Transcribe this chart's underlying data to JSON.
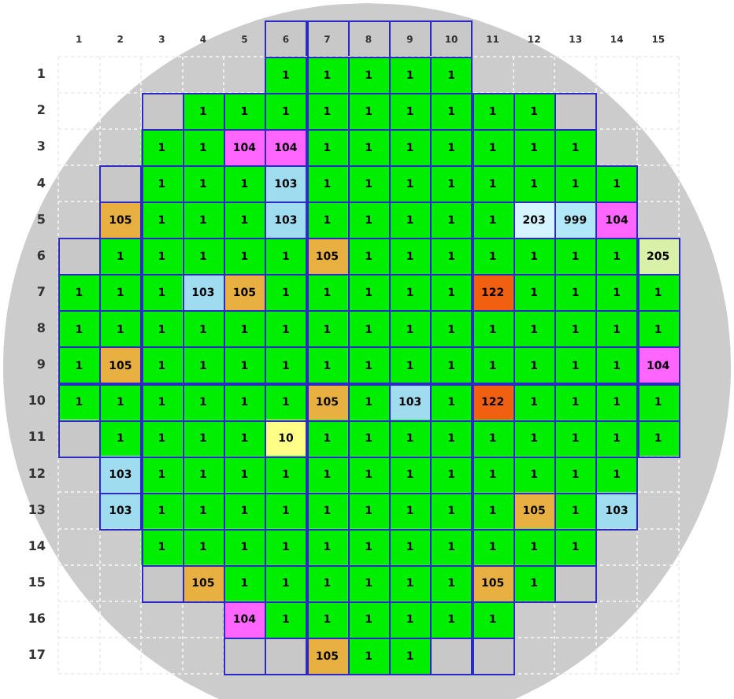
{
  "chart_data": {
    "type": "heatmap",
    "categories": [
      "1",
      "2",
      "3",
      "4",
      "5",
      "6",
      "7",
      "8",
      "9",
      "10",
      "11",
      "12",
      "13",
      "14",
      "15"
    ],
    "y_categories": [
      "1",
      "2",
      "3",
      "4",
      "5",
      "6",
      "7",
      "8",
      "9",
      "10",
      "11",
      "12",
      "13",
      "14",
      "15",
      "16",
      "17"
    ],
    "cells": [
      [
        null,
        null,
        null,
        null,
        null,
        1,
        1,
        1,
        1,
        1,
        null,
        null,
        null,
        null,
        null
      ],
      [
        null,
        null,
        null,
        1,
        1,
        1,
        1,
        1,
        1,
        1,
        1,
        1,
        null,
        null,
        null
      ],
      [
        null,
        null,
        1,
        1,
        104,
        104,
        1,
        1,
        1,
        1,
        1,
        1,
        1,
        null,
        null
      ],
      [
        null,
        null,
        1,
        1,
        1,
        103,
        1,
        1,
        1,
        1,
        1,
        1,
        1,
        1,
        null
      ],
      [
        null,
        105,
        1,
        1,
        1,
        103,
        1,
        1,
        1,
        1,
        1,
        203,
        999,
        104,
        null
      ],
      [
        null,
        1,
        1,
        1,
        1,
        1,
        105,
        1,
        1,
        1,
        1,
        1,
        1,
        1,
        205
      ],
      [
        1,
        1,
        1,
        103,
        105,
        1,
        1,
        1,
        1,
        1,
        122,
        1,
        1,
        1,
        1
      ],
      [
        1,
        1,
        1,
        1,
        1,
        1,
        1,
        1,
        1,
        1,
        1,
        1,
        1,
        1,
        1
      ],
      [
        1,
        105,
        1,
        1,
        1,
        1,
        1,
        1,
        1,
        1,
        1,
        1,
        1,
        1,
        104
      ],
      [
        1,
        1,
        1,
        1,
        1,
        1,
        105,
        1,
        103,
        1,
        122,
        1,
        1,
        1,
        1
      ],
      [
        null,
        1,
        1,
        1,
        1,
        10,
        1,
        1,
        1,
        1,
        1,
        1,
        1,
        1,
        1
      ],
      [
        null,
        103,
        1,
        1,
        1,
        1,
        1,
        1,
        1,
        1,
        1,
        1,
        1,
        1,
        null
      ],
      [
        null,
        103,
        1,
        1,
        1,
        1,
        1,
        1,
        1,
        1,
        1,
        105,
        1,
        103,
        null
      ],
      [
        null,
        null,
        1,
        1,
        1,
        1,
        1,
        1,
        1,
        1,
        1,
        1,
        1,
        null,
        null
      ],
      [
        null,
        null,
        null,
        105,
        1,
        1,
        1,
        1,
        1,
        1,
        105,
        1,
        null,
        null,
        null
      ],
      [
        null,
        null,
        null,
        null,
        104,
        1,
        1,
        1,
        1,
        1,
        1,
        null,
        null,
        null,
        null
      ],
      [
        null,
        null,
        null,
        null,
        null,
        null,
        105,
        1,
        1,
        null,
        null,
        null,
        null,
        null,
        null
      ]
    ],
    "colors": [
      [
        null,
        null,
        null,
        null,
        null,
        "#00ee00",
        "#00ee00",
        "#00ee00",
        "#00ee00",
        "#00ee00",
        null,
        null,
        null,
        null,
        null
      ],
      [
        null,
        null,
        null,
        "#00ee00",
        "#00ee00",
        "#00ee00",
        "#00ee00",
        "#00ee00",
        "#00ee00",
        "#00ee00",
        "#00ee00",
        "#00ee00",
        null,
        null,
        null
      ],
      [
        null,
        null,
        "#00ee00",
        "#00ee00",
        "#ff66ff",
        "#ff66ff",
        "#00ee00",
        "#00ee00",
        "#00ee00",
        "#00ee00",
        "#00ee00",
        "#00ee00",
        "#00ee00",
        null,
        null
      ],
      [
        null,
        null,
        "#00ee00",
        "#00ee00",
        "#00ee00",
        "#a0dcf0",
        "#00ee00",
        "#00ee00",
        "#00ee00",
        "#00ee00",
        "#00ee00",
        "#00ee00",
        "#00ee00",
        "#00ee00",
        null
      ],
      [
        null,
        "#e8b040",
        "#00ee00",
        "#00ee00",
        "#00ee00",
        "#a0dcf0",
        "#00ee00",
        "#00ee00",
        "#00ee00",
        "#00ee00",
        "#00ee00",
        "#d4f4ff",
        "#b0e8f8",
        "#ff66ff",
        null
      ],
      [
        null,
        "#00ee00",
        "#00ee00",
        "#00ee00",
        "#00ee00",
        "#00ee00",
        "#e8b040",
        "#00ee00",
        "#00ee00",
        "#00ee00",
        "#00ee00",
        "#00ee00",
        "#00ee00",
        "#00ee00",
        "#d8f0a8"
      ],
      [
        "#00ee00",
        "#00ee00",
        "#00ee00",
        "#a0dcf0",
        "#e8b040",
        "#00ee00",
        "#00ee00",
        "#00ee00",
        "#00ee00",
        "#00ee00",
        "#f06010",
        "#00ee00",
        "#00ee00",
        "#00ee00",
        "#00ee00"
      ],
      [
        "#00ee00",
        "#00ee00",
        "#00ee00",
        "#00ee00",
        "#00ee00",
        "#00ee00",
        "#00ee00",
        "#00ee00",
        "#00ee00",
        "#00ee00",
        "#00ee00",
        "#00ee00",
        "#00ee00",
        "#00ee00",
        "#00ee00"
      ],
      [
        "#00ee00",
        "#e8b040",
        "#00ee00",
        "#00ee00",
        "#00ee00",
        "#00ee00",
        "#00ee00",
        "#00ee00",
        "#00ee00",
        "#00ee00",
        "#00ee00",
        "#00ee00",
        "#00ee00",
        "#00ee00",
        "#ff66ff"
      ],
      [
        "#00ee00",
        "#00ee00",
        "#00ee00",
        "#00ee00",
        "#00ee00",
        "#00ee00",
        "#e8b040",
        "#00ee00",
        "#a0dcf0",
        "#00ee00",
        "#f06010",
        "#00ee00",
        "#00ee00",
        "#00ee00",
        "#00ee00"
      ],
      [
        null,
        "#00ee00",
        "#00ee00",
        "#00ee00",
        "#00ee00",
        "#ffff88",
        "#00ee00",
        "#00ee00",
        "#00ee00",
        "#00ee00",
        "#00ee00",
        "#00ee00",
        "#00ee00",
        "#00ee00",
        "#00ee00"
      ],
      [
        null,
        "#a0dcf0",
        "#00ee00",
        "#00ee00",
        "#00ee00",
        "#00ee00",
        "#00ee00",
        "#00ee00",
        "#00ee00",
        "#00ee00",
        "#00ee00",
        "#00ee00",
        "#00ee00",
        "#00ee00",
        null
      ],
      [
        null,
        "#a0dcf0",
        "#00ee00",
        "#00ee00",
        "#00ee00",
        "#00ee00",
        "#00ee00",
        "#00ee00",
        "#00ee00",
        "#00ee00",
        "#00ee00",
        "#e8b040",
        "#00ee00",
        "#a0dcf0",
        null
      ],
      [
        null,
        null,
        "#00ee00",
        "#00ee00",
        "#00ee00",
        "#00ee00",
        "#00ee00",
        "#00ee00",
        "#00ee00",
        "#00ee00",
        "#00ee00",
        "#00ee00",
        "#00ee00",
        null,
        null
      ],
      [
        null,
        null,
        null,
        "#e8b040",
        "#00ee00",
        "#00ee00",
        "#00ee00",
        "#00ee00",
        "#00ee00",
        "#00ee00",
        "#e8b040",
        "#00ee00",
        null,
        null,
        null
      ],
      [
        null,
        null,
        null,
        null,
        "#ff66ff",
        "#00ee00",
        "#00ee00",
        "#00ee00",
        "#00ee00",
        "#00ee00",
        "#00ee00",
        null,
        null,
        null,
        null
      ],
      [
        null,
        null,
        null,
        null,
        null,
        null,
        "#e8b040",
        "#00ee00",
        "#00ee00",
        null,
        null,
        null,
        null,
        null,
        null
      ]
    ],
    "data_labels": true,
    "grid": true
  }
}
